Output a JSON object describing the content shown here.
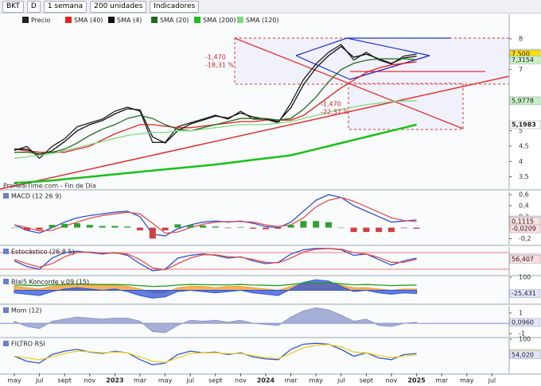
{
  "toolbar": {
    "symbol": "BKT",
    "period": "D",
    "timeframe": "1 semana",
    "units": "200 unidades",
    "indicators": "Indicadores"
  },
  "chart_data": [
    {
      "type": "line",
      "categories": [
        "may",
        null,
        "jul",
        null,
        "sept",
        null,
        "nov",
        null,
        "2023",
        null,
        "mar",
        null,
        "may",
        null,
        "jul",
        null,
        "sept",
        null,
        "nov",
        null,
        "2024",
        null,
        "mar",
        null,
        "may",
        null,
        "jul",
        null,
        "sept",
        null,
        "nov",
        null,
        "2025",
        null,
        "mar",
        null,
        "may",
        null,
        "jul"
      ],
      "ylim": [
        3.1,
        8.8
      ],
      "yticks": [
        {
          "value": 3.5,
          "label": "3,5"
        },
        4,
        {
          "value": 4.5,
          "label": "4,5"
        },
        5,
        7,
        8
      ],
      "series": [
        {
          "name": "Precio",
          "color": "#222222",
          "values": [
            4.36,
            4.49,
            4.1,
            4.49,
            4.74,
            5.13,
            5.26,
            5.38,
            5.64,
            5.77,
            5.64,
            4.62,
            4.62,
            5.13,
            5.26,
            5.38,
            5.51,
            5.38,
            5.64,
            5.38,
            5.38,
            5.26,
            5.9,
            6.67,
            7.18,
            7.56,
            7.82,
            7.31,
            7.56,
            7.31,
            7.18,
            7.44,
            7.5,
            null,
            null,
            null,
            null,
            null,
            null
          ]
        },
        {
          "name": "SMA (40)",
          "color": "#e02020",
          "values": [
            4.4,
            4.35,
            4.3,
            4.3,
            4.3,
            4.4,
            4.5,
            4.7,
            4.9,
            5.05,
            5.2,
            5.2,
            5.15,
            5.1,
            5.1,
            5.15,
            5.2,
            5.25,
            5.3,
            5.3,
            5.35,
            5.35,
            5.35,
            5.5,
            5.8,
            6.1,
            6.4,
            6.65,
            6.9,
            7.05,
            7.15,
            7.2,
            7.25,
            null,
            null,
            null,
            null,
            null,
            null
          ]
        },
        {
          "name": "SMA (4)",
          "color": "#111111",
          "values": [
            4.4,
            4.4,
            4.2,
            4.35,
            4.65,
            5.0,
            5.2,
            5.33,
            5.55,
            5.72,
            5.68,
            4.8,
            4.6,
            5.0,
            5.22,
            5.35,
            5.48,
            5.42,
            5.58,
            5.45,
            5.38,
            5.3,
            5.75,
            6.5,
            7.05,
            7.45,
            7.75,
            7.4,
            7.5,
            7.35,
            7.2,
            7.38,
            7.43,
            null,
            null,
            null,
            null,
            null,
            null
          ]
        },
        {
          "name": "SMA (20)",
          "color": "#1f6b1f",
          "values": [
            4.3,
            4.3,
            4.25,
            4.3,
            4.4,
            4.6,
            4.85,
            5.05,
            5.2,
            5.4,
            5.5,
            5.4,
            5.2,
            5.05,
            5.0,
            5.1,
            5.2,
            5.3,
            5.4,
            5.4,
            5.4,
            5.35,
            5.4,
            5.7,
            6.1,
            6.6,
            7.0,
            7.2,
            7.3,
            7.35,
            7.35,
            7.35,
            7.32,
            null,
            null,
            null,
            null,
            null,
            null
          ]
        },
        {
          "name": "SMA (200)",
          "color": "#17c117",
          "values": [
            3.3,
            3.32,
            3.35,
            3.38,
            3.42,
            3.46,
            3.5,
            3.54,
            3.58,
            3.62,
            3.66,
            3.7,
            3.74,
            3.78,
            3.82,
            3.86,
            3.9,
            3.95,
            4.0,
            4.05,
            4.1,
            4.15,
            4.2,
            4.3,
            4.4,
            4.5,
            4.6,
            4.7,
            4.8,
            4.9,
            5.0,
            5.1,
            5.2,
            null,
            null,
            null,
            null,
            null,
            null
          ]
        },
        {
          "name": "SMA (120)",
          "color": "#7fd97f",
          "values": [
            4.1,
            4.15,
            4.2,
            4.25,
            4.35,
            4.45,
            4.55,
            4.65,
            4.75,
            4.85,
            4.9,
            4.95,
            4.95,
            5.0,
            5.0,
            5.05,
            5.1,
            5.15,
            5.2,
            5.2,
            5.2,
            5.25,
            5.3,
            5.4,
            5.5,
            5.6,
            5.7,
            5.78,
            5.85,
            5.9,
            5.95,
            5.97,
            5.98,
            null,
            null,
            null,
            null,
            null,
            null
          ]
        }
      ],
      "price_labels": [
        {
          "value": 7.531,
          "label": "7,5310",
          "color": "#dddddd"
        },
        {
          "value": 7.5,
          "label": "7,500",
          "color": "#ffe000"
        },
        {
          "value": 7.3154,
          "label": "7,3154",
          "color": "#c8f0c8"
        },
        {
          "value": 5.9778,
          "label": "5,9778",
          "color": "#c8f0c8"
        },
        {
          "value": 5.1983,
          "label": "5,1983",
          "color": "#ffffff"
        }
      ],
      "annotations": [
        [
          "-1,470",
          "-18,31 %"
        ],
        [
          "-1,470",
          "-22,37 %"
        ]
      ],
      "source": "ProRealTime.com - Fin de Día"
    },
    {
      "type": "macd",
      "title": "MACD (12 26 9)",
      "ylim": [
        -0.31,
        0.66
      ],
      "yticks": [
        {
          "value": -0.2,
          "label": "-0,2"
        },
        0,
        {
          "value": 0.2,
          "label": "0,2"
        },
        {
          "value": 0.4,
          "label": "0,4"
        },
        {
          "value": 0.6,
          "label": "0,6"
        }
      ],
      "series": [
        {
          "color": "#3050d0",
          "style": "line",
          "values": [
            0.05,
            -0.05,
            -0.1,
            0.0,
            0.1,
            0.18,
            0.22,
            0.25,
            0.28,
            0.3,
            0.2,
            -0.12,
            -0.15,
            -0.02,
            0.05,
            0.1,
            0.12,
            0.1,
            0.12,
            0.08,
            0.02,
            0.0,
            0.1,
            0.3,
            0.5,
            0.6,
            0.55,
            0.4,
            0.3,
            0.2,
            0.1,
            0.12,
            0.14
          ]
        },
        {
          "color": "#e05050",
          "style": "line",
          "values": [
            0.05,
            0.0,
            -0.06,
            -0.05,
            0.03,
            0.1,
            0.17,
            0.22,
            0.25,
            0.28,
            0.25,
            0.08,
            -0.1,
            -0.08,
            0.0,
            0.06,
            0.1,
            0.11,
            0.11,
            0.1,
            0.05,
            0.02,
            0.05,
            0.18,
            0.38,
            0.5,
            0.55,
            0.48,
            0.38,
            0.28,
            0.18,
            0.13,
            0.11
          ]
        },
        {
          "color": "#30a030",
          "neg_color": "#d04040",
          "style": "bar",
          "values": [
            0.0,
            -0.05,
            -0.04,
            0.05,
            0.07,
            0.08,
            0.05,
            0.03,
            0.03,
            0.02,
            -0.05,
            -0.2,
            -0.05,
            0.06,
            0.05,
            0.04,
            0.02,
            -0.01,
            0.01,
            -0.02,
            -0.03,
            -0.02,
            0.05,
            0.12,
            0.12,
            0.1,
            0.0,
            -0.08,
            -0.08,
            -0.08,
            -0.08,
            -0.01,
            -0.02
          ]
        }
      ],
      "price_labels": [
        {
          "value": 0.1385,
          "label": "0,1385",
          "color": "#dfe6ff"
        },
        {
          "value": 0.1115,
          "label": "0,1115",
          "color": "#ffdede"
        },
        {
          "value": -0.0209,
          "label": "-0,0209",
          "color": "#ffdede"
        }
      ]
    },
    {
      "type": "oscillator",
      "title": "Estocástico (26 8 5)",
      "ylim": [
        0,
        100
      ],
      "yticks": [],
      "reference_lines": [
        80,
        20
      ],
      "series": [
        {
          "color": "#3050d0",
          "style": "line",
          "values": [
            50,
            30,
            20,
            60,
            80,
            85,
            80,
            75,
            80,
            70,
            40,
            15,
            20,
            60,
            70,
            75,
            70,
            60,
            65,
            50,
            40,
            45,
            75,
            90,
            95,
            95,
            90,
            70,
            75,
            55,
            35,
            50,
            60
          ]
        },
        {
          "color": "#e05050",
          "style": "line",
          "values": [
            55,
            40,
            28,
            40,
            65,
            80,
            82,
            78,
            78,
            75,
            55,
            25,
            18,
            40,
            60,
            72,
            72,
            65,
            63,
            55,
            45,
            43,
            60,
            82,
            92,
            95,
            92,
            80,
            75,
            62,
            45,
            45,
            56
          ]
        }
      ],
      "price_labels": [
        {
          "value": 60.578,
          "label": "60,578",
          "color": "#dfe6ff"
        },
        {
          "value": 56.407,
          "label": "56,407",
          "color": "#ffdede"
        }
      ]
    },
    {
      "type": "oscillator",
      "title": "Blai5 Koncorde v.09 (15)",
      "ylim": [
        -100,
        100
      ],
      "yticks": [
        100
      ],
      "series": [
        {
          "color": "#f39a2a",
          "style": "area",
          "values": [
            30,
            20,
            10,
            30,
            40,
            50,
            40,
            40,
            40,
            30,
            10,
            -20,
            -20,
            20,
            30,
            30,
            20,
            30,
            30,
            20,
            10,
            0,
            30,
            50,
            60,
            60,
            40,
            20,
            20,
            10,
            0,
            10,
            10
          ]
        },
        {
          "color": "#2f55d4",
          "style": "area",
          "values": [
            -20,
            -30,
            -40,
            -10,
            10,
            20,
            10,
            0,
            10,
            -10,
            -40,
            -60,
            -50,
            -10,
            0,
            -10,
            -20,
            -10,
            0,
            -20,
            -30,
            -40,
            10,
            60,
            80,
            70,
            30,
            -10,
            0,
            -20,
            -30,
            -20,
            -25
          ]
        },
        {
          "color": "#20a020",
          "style": "line",
          "values": [
            40,
            38,
            35,
            42,
            45,
            48,
            46,
            44,
            45,
            42,
            35,
            30,
            32,
            40,
            44,
            43,
            42,
            42,
            44,
            40,
            38,
            36,
            44,
            55,
            60,
            58,
            50,
            42,
            44,
            40,
            36,
            38,
            40
          ]
        }
      ],
      "price_labels": [
        {
          "value": -25.431,
          "label": "-25,431",
          "color": "#dfe6ff"
        }
      ]
    },
    {
      "type": "oscillator",
      "title": "Mom (12)",
      "ylim": [
        -1.3,
        1.7
      ],
      "yticks": [
        -1,
        1
      ],
      "reference_lines": [
        0
      ],
      "series": [
        {
          "color": "#8a96c8",
          "neg_color": "#c08070",
          "style": "area",
          "values": [
            0.2,
            -0.3,
            -0.5,
            0.2,
            0.4,
            0.6,
            0.5,
            0.4,
            0.5,
            0.5,
            0.2,
            -0.8,
            -0.9,
            -0.2,
            0.3,
            0.2,
            0.3,
            0.1,
            0.3,
            0.0,
            -0.1,
            -0.2,
            0.6,
            1.2,
            1.5,
            1.3,
            0.8,
            0.2,
            0.4,
            -0.2,
            -0.3,
            0.0,
            0.1
          ]
        }
      ],
      "price_labels": [
        {
          "value": 0.096,
          "label": "0,0960",
          "color": "#dfe6ff"
        }
      ]
    },
    {
      "type": "oscillator",
      "title": "FILTRO RSI",
      "ylim": [
        0,
        100
      ],
      "yticks": [
        100
      ],
      "series": [
        {
          "color": "#2f55d4",
          "style": "line",
          "values": [
            50,
            35,
            30,
            55,
            65,
            70,
            62,
            58,
            65,
            60,
            40,
            25,
            30,
            55,
            65,
            60,
            62,
            55,
            60,
            48,
            42,
            40,
            70,
            85,
            88,
            85,
            70,
            50,
            60,
            45,
            40,
            55,
            58
          ]
        },
        {
          "color": "#f0d020",
          "style": "line",
          "values": [
            50,
            45,
            40,
            48,
            58,
            65,
            63,
            60,
            62,
            60,
            48,
            35,
            32,
            45,
            58,
            60,
            60,
            58,
            58,
            52,
            46,
            43,
            58,
            75,
            82,
            84,
            78,
            62,
            60,
            52,
            46,
            50,
            54
          ]
        }
      ],
      "price_labels": [
        {
          "value": 58.272,
          "label": "58,272",
          "color": "#fff6b0"
        },
        {
          "value": 54.02,
          "label": "54,020",
          "color": "#dfe6ff"
        }
      ]
    }
  ]
}
